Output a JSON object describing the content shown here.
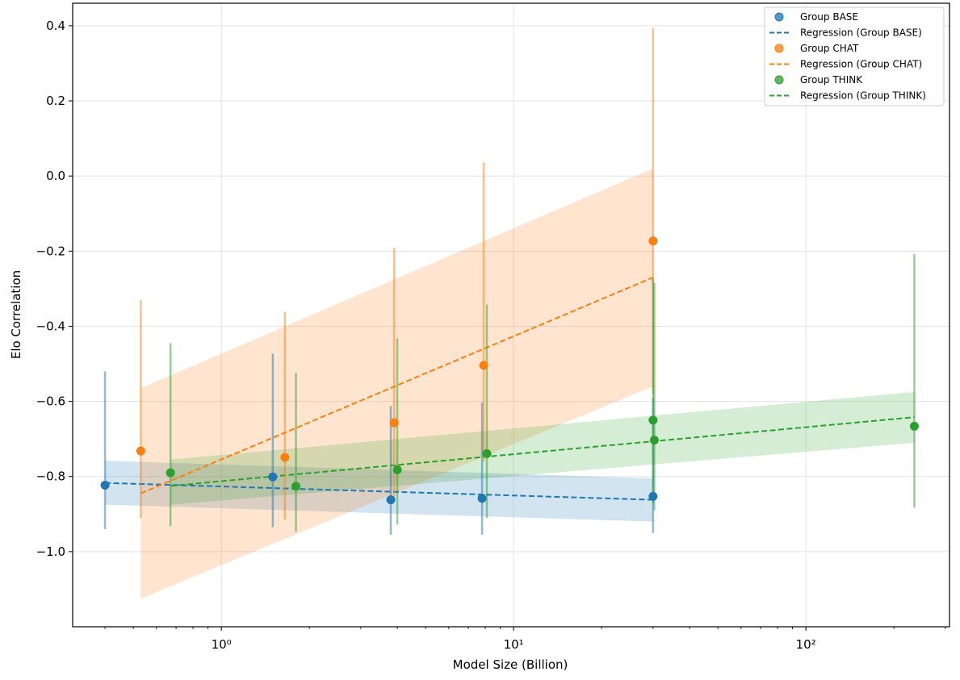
{
  "chart_data": {
    "type": "scatter",
    "title": "",
    "xlabel": "Model Size (Billion)",
    "ylabel": "Elo Correlation",
    "x_scale": "log",
    "xlim": [
      0.31,
      310
    ],
    "ylim": [
      -1.2,
      0.46
    ],
    "x_ticks": [
      {
        "value": 1,
        "label": "10⁰"
      },
      {
        "value": 10,
        "label": "10¹"
      },
      {
        "value": 100,
        "label": "10²"
      }
    ],
    "y_ticks": [
      {
        "value": 0.4,
        "label": "0.4"
      },
      {
        "value": 0.2,
        "label": "0.2"
      },
      {
        "value": 0.0,
        "label": "0.0"
      },
      {
        "value": -0.2,
        "label": "−0.2"
      },
      {
        "value": -0.4,
        "label": "−0.4"
      },
      {
        "value": -0.6,
        "label": "−0.6"
      },
      {
        "value": -0.8,
        "label": "−0.8"
      },
      {
        "value": -1.0,
        "label": "−1.0"
      }
    ],
    "grid": true,
    "legend_position": "top-right",
    "series": [
      {
        "name": "Group BASE",
        "regression_name": "Regression (Group BASE)",
        "color": "#1f77b4",
        "points": [
          {
            "x": 0.4,
            "y": -0.823,
            "low": -0.94,
            "high": -0.52
          },
          {
            "x": 1.5,
            "y": -0.801,
            "low": -0.935,
            "high": -0.473
          },
          {
            "x": 3.8,
            "y": -0.862,
            "low": -0.955,
            "high": -0.612
          },
          {
            "x": 7.8,
            "y": -0.858,
            "low": -0.955,
            "high": -0.603
          },
          {
            "x": 30,
            "y": -0.853,
            "low": -0.95,
            "high": -0.59
          }
        ],
        "regression": {
          "x_range": [
            0.4,
            30
          ],
          "line": [
            -0.817,
            -0.862
          ],
          "band_low": [
            -0.875,
            -0.92
          ],
          "band_high": [
            -0.758,
            -0.805
          ]
        }
      },
      {
        "name": "Group CHAT",
        "regression_name": "Regression (Group CHAT)",
        "color": "#ff7f0e",
        "points": [
          {
            "x": 0.53,
            "y": -0.732,
            "low": -0.91,
            "high": -0.33
          },
          {
            "x": 1.65,
            "y": -0.749,
            "low": -0.915,
            "high": -0.362
          },
          {
            "x": 3.9,
            "y": -0.657,
            "low": -0.86,
            "high": -0.192
          },
          {
            "x": 7.9,
            "y": -0.504,
            "low": -0.76,
            "high": 0.036
          },
          {
            "x": 30,
            "y": -0.173,
            "low": -0.58,
            "high": 0.394
          }
        ],
        "regression": {
          "x_range": [
            0.53,
            30
          ],
          "line": [
            -0.845,
            -0.27
          ],
          "band_low": [
            -1.125,
            -0.56
          ],
          "band_high": [
            -0.565,
            0.02
          ]
        }
      },
      {
        "name": "Group THINK",
        "regression_name": "Regression (Group THINK)",
        "color": "#2ca02c",
        "points": [
          {
            "x": 0.67,
            "y": -0.79,
            "low": -0.932,
            "high": -0.445
          },
          {
            "x": 1.8,
            "y": -0.826,
            "low": -0.947,
            "high": -0.524
          },
          {
            "x": 4.0,
            "y": -0.782,
            "low": -0.928,
            "high": -0.432
          },
          {
            "x": 8.1,
            "y": -0.739,
            "low": -0.91,
            "high": -0.342
          },
          {
            "x": 30,
            "y": -0.65,
            "low": -0.87,
            "high": -0.273
          },
          {
            "x": 30.3,
            "y": -0.703,
            "low": -0.89,
            "high": -0.285
          },
          {
            "x": 235,
            "y": -0.666,
            "low": -0.883,
            "high": -0.208
          }
        ],
        "regression": {
          "x_range": [
            0.67,
            235
          ],
          "line": [
            -0.825,
            -0.642
          ],
          "band_low": [
            -0.875,
            -0.71
          ],
          "band_high": [
            -0.755,
            -0.575
          ]
        }
      }
    ]
  }
}
